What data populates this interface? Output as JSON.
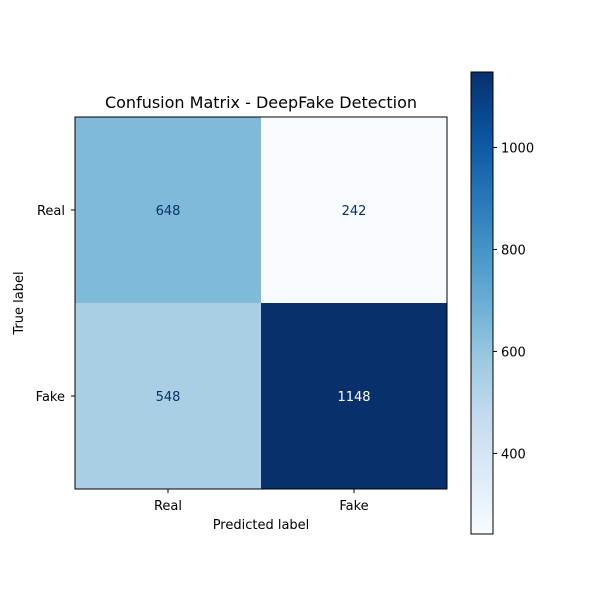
{
  "chart_data": {
    "type": "heatmap",
    "title": "Confusion Matrix - DeepFake Detection",
    "xlabel": "Predicted label",
    "ylabel": "True label",
    "x_categories": [
      "Real",
      "Fake"
    ],
    "y_categories": [
      "Real",
      "Fake"
    ],
    "values": [
      [
        648,
        242
      ],
      [
        548,
        1148
      ]
    ],
    "colormap": "Blues",
    "colorbar": {
      "min": 242,
      "max": 1148,
      "ticks": [
        400,
        600,
        800,
        1000
      ]
    },
    "text_colors": {
      "dark_cell": "#ffffff",
      "light_cell": "#08306b"
    }
  }
}
